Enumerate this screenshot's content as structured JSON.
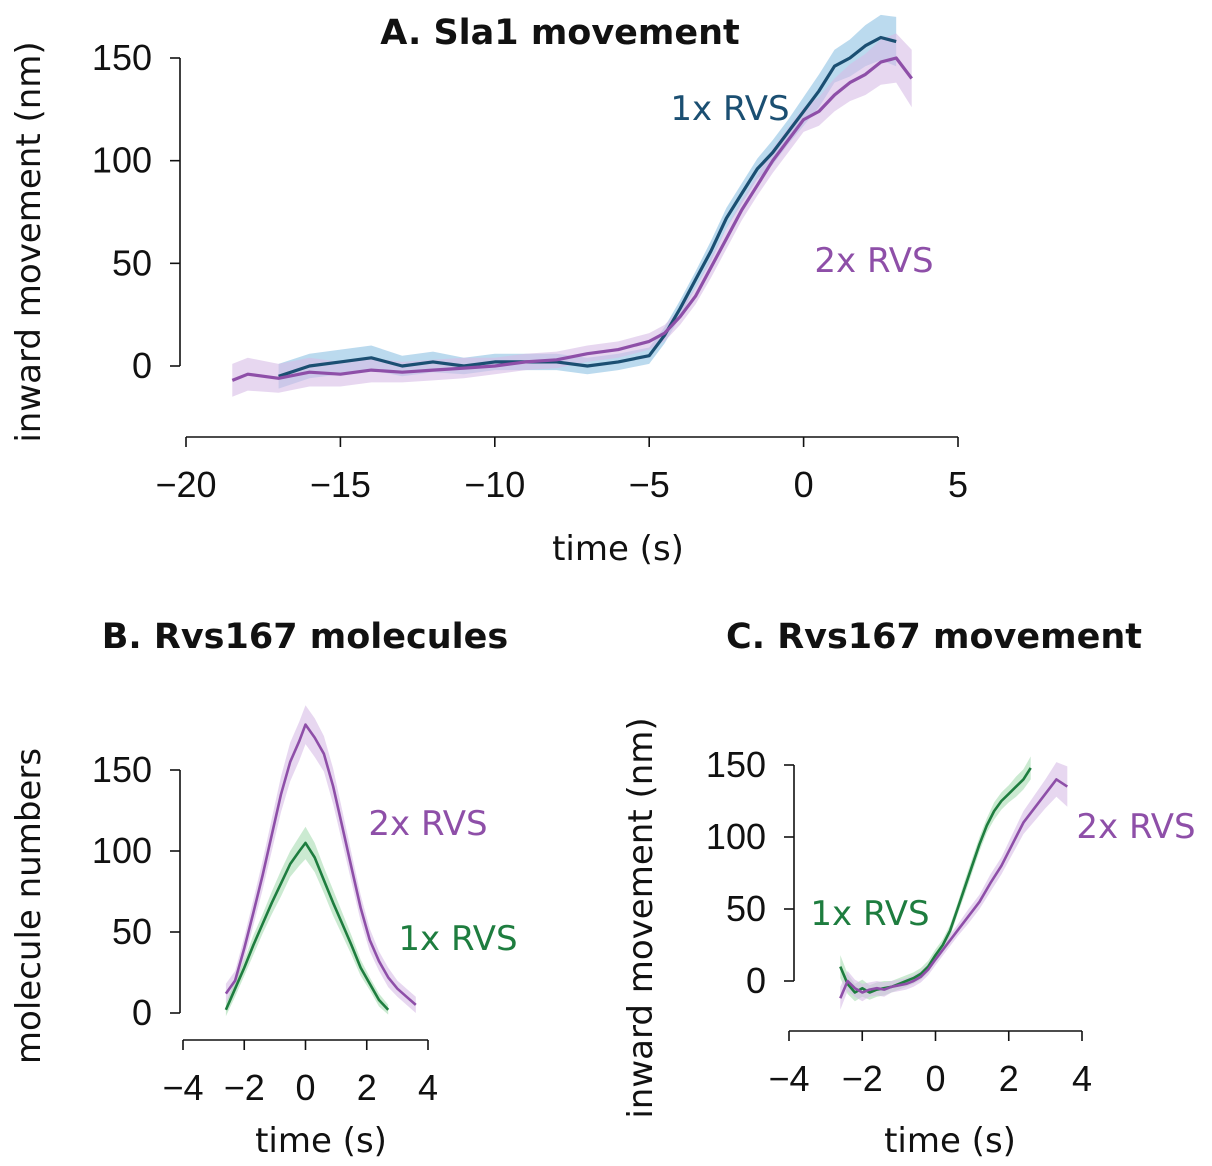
{
  "chart_data": [
    {
      "id": "A",
      "type": "line",
      "title": "A.  Sla1 movement",
      "xlabel": "time (s)",
      "ylabel": "inward movement (nm)",
      "xlim": [
        -20,
        5
      ],
      "ylim": [
        -30,
        165
      ],
      "xticks": [
        -20,
        -15,
        -10,
        -5,
        0,
        5
      ],
      "xtick_labels": [
        "−20",
        "−15",
        "−10",
        "−5",
        "0",
        "5"
      ],
      "yticks": [
        0,
        50,
        100,
        150
      ],
      "ytick_labels": [
        "0",
        "50",
        "100",
        "150"
      ],
      "grid": false,
      "series": [
        {
          "name": "1x RVS",
          "color": "#1b4f72",
          "band_color": "#8ec1e3",
          "x": [
            -17,
            -16,
            -15,
            -14,
            -13,
            -12,
            -11,
            -10,
            -9,
            -8,
            -7,
            -6,
            -5,
            -4.5,
            -4,
            -3.5,
            -3,
            -2.5,
            -2,
            -1.5,
            -1,
            -0.5,
            0,
            0.5,
            1,
            1.5,
            2,
            2.5,
            3
          ],
          "y": [
            -5,
            0,
            2,
            4,
            0,
            2,
            0,
            2,
            2,
            2,
            0,
            2,
            5,
            15,
            28,
            42,
            56,
            72,
            84,
            96,
            104,
            114,
            124,
            134,
            146,
            150,
            156,
            160,
            158
          ],
          "err": [
            6,
            6,
            6,
            6,
            5,
            5,
            4,
            4,
            4,
            4,
            4,
            4,
            4,
            4,
            4,
            4,
            5,
            5,
            5,
            5,
            6,
            6,
            7,
            8,
            8,
            9,
            10,
            11,
            12
          ]
        },
        {
          "name": "2x RVS",
          "color": "#8e4fa8",
          "band_color": "#d7bde6",
          "x": [
            -18.5,
            -18,
            -17,
            -16,
            -15,
            -14,
            -13,
            -12,
            -11,
            -10,
            -9,
            -8,
            -7,
            -6,
            -5,
            -4.5,
            -4,
            -3.5,
            -3,
            -2.5,
            -2,
            -1.5,
            -1,
            -0.5,
            0,
            0.5,
            1,
            1.5,
            2,
            2.5,
            3,
            3.5
          ],
          "y": [
            -7,
            -4,
            -6,
            -3,
            -4,
            -2,
            -3,
            -2,
            -1,
            0,
            2,
            3,
            6,
            8,
            12,
            16,
            24,
            34,
            48,
            62,
            76,
            88,
            100,
            110,
            120,
            124,
            132,
            138,
            142,
            148,
            150,
            140
          ],
          "err": [
            8,
            8,
            7,
            7,
            6,
            6,
            5,
            5,
            5,
            4,
            4,
            4,
            4,
            4,
            4,
            4,
            4,
            4,
            5,
            5,
            5,
            5,
            6,
            6,
            6,
            7,
            8,
            9,
            10,
            11,
            12,
            14
          ]
        }
      ],
      "labels": [
        {
          "text": "1x RVS",
          "series": "1x RVS"
        },
        {
          "text": "2x RVS",
          "series": "2x RVS"
        }
      ]
    },
    {
      "id": "B",
      "type": "line",
      "title": "B.  Rvs167 molecules",
      "xlabel": "time (s)",
      "ylabel": "molecule numbers",
      "xlim": [
        -4,
        4
      ],
      "ylim": [
        -5,
        190
      ],
      "xticks": [
        -4,
        -2,
        0,
        2,
        4
      ],
      "xtick_labels": [
        "−4",
        "−2",
        "0",
        "2",
        "4"
      ],
      "yticks": [
        0,
        50,
        100,
        150
      ],
      "ytick_labels": [
        "0",
        "50",
        "100",
        "150"
      ],
      "grid": false,
      "series": [
        {
          "name": "2x RVS",
          "color": "#8e4fa8",
          "band_color": "#d7bde6",
          "x": [
            -2.6,
            -2.3,
            -2,
            -1.7,
            -1.4,
            -1.1,
            -0.8,
            -0.5,
            -0.2,
            0,
            0.3,
            0.6,
            0.9,
            1.2,
            1.5,
            1.8,
            2.1,
            2.4,
            2.7,
            3,
            3.3,
            3.6
          ],
          "y": [
            12,
            20,
            40,
            62,
            85,
            110,
            135,
            155,
            168,
            178,
            170,
            160,
            140,
            115,
            90,
            65,
            45,
            32,
            22,
            15,
            10,
            5
          ],
          "err": [
            6,
            6,
            7,
            8,
            9,
            10,
            11,
            12,
            12,
            12,
            12,
            11,
            11,
            10,
            9,
            8,
            7,
            6,
            6,
            5,
            5,
            5
          ]
        },
        {
          "name": "1x RVS",
          "color": "#1e7d3f",
          "band_color": "#a8dcb3",
          "x": [
            -2.6,
            -2.3,
            -2,
            -1.7,
            -1.4,
            -1.1,
            -0.8,
            -0.5,
            -0.2,
            0,
            0.3,
            0.6,
            0.9,
            1.2,
            1.5,
            1.8,
            2.1,
            2.4,
            2.7
          ],
          "y": [
            2,
            15,
            28,
            42,
            55,
            68,
            80,
            92,
            100,
            105,
            96,
            82,
            68,
            55,
            42,
            28,
            18,
            8,
            2
          ],
          "err": [
            4,
            5,
            5,
            6,
            6,
            7,
            8,
            8,
            9,
            10,
            9,
            8,
            8,
            7,
            6,
            5,
            4,
            4,
            3
          ]
        }
      ],
      "labels": [
        {
          "text": "2x RVS",
          "series": "2x RVS"
        },
        {
          "text": "1x RVS",
          "series": "1x RVS"
        }
      ]
    },
    {
      "id": "C",
      "type": "line",
      "title": "C.  Rvs167 movement",
      "xlabel": "time (s)",
      "ylabel": "inward movement (nm)",
      "xlim": [
        -4,
        4
      ],
      "ylim": [
        -30,
        165
      ],
      "xticks": [
        -4,
        -2,
        0,
        2,
        4
      ],
      "xtick_labels": [
        "−4",
        "−2",
        "0",
        "2",
        "4"
      ],
      "yticks": [
        0,
        50,
        100,
        150
      ],
      "ytick_labels": [
        "0",
        "50",
        "100",
        "150"
      ],
      "grid": false,
      "series": [
        {
          "name": "1x RVS",
          "color": "#1e7d3f",
          "band_color": "#a8dcb3",
          "x": [
            -2.6,
            -2.4,
            -2.2,
            -2,
            -1.8,
            -1.6,
            -1.4,
            -1.2,
            -1,
            -0.8,
            -0.6,
            -0.4,
            -0.2,
            0,
            0.2,
            0.4,
            0.6,
            0.8,
            1,
            1.2,
            1.4,
            1.6,
            1.8,
            2,
            2.2,
            2.4,
            2.6
          ],
          "y": [
            10,
            -2,
            -8,
            -5,
            -8,
            -6,
            -5,
            -4,
            -2,
            0,
            2,
            5,
            10,
            18,
            25,
            35,
            50,
            65,
            80,
            95,
            108,
            118,
            125,
            130,
            135,
            140,
            148
          ],
          "err": [
            8,
            7,
            6,
            6,
            5,
            5,
            5,
            4,
            4,
            4,
            4,
            4,
            4,
            4,
            4,
            4,
            4,
            5,
            5,
            5,
            5,
            6,
            6,
            6,
            7,
            7,
            8
          ]
        },
        {
          "name": "2x RVS",
          "color": "#8e4fa8",
          "band_color": "#d7bde6",
          "x": [
            -2.6,
            -2.4,
            -2.2,
            -2,
            -1.8,
            -1.6,
            -1.4,
            -1.2,
            -1,
            -0.8,
            -0.6,
            -0.4,
            -0.2,
            0,
            0.3,
            0.6,
            0.9,
            1.2,
            1.5,
            1.8,
            2.1,
            2.4,
            2.7,
            3,
            3.3,
            3.6
          ],
          "y": [
            -12,
            0,
            -5,
            -8,
            -6,
            -5,
            -6,
            -4,
            -3,
            -2,
            0,
            3,
            8,
            15,
            25,
            35,
            45,
            55,
            68,
            80,
            95,
            110,
            120,
            130,
            140,
            135
          ],
          "err": [
            8,
            7,
            6,
            6,
            5,
            5,
            5,
            4,
            4,
            4,
            4,
            4,
            4,
            4,
            4,
            4,
            5,
            5,
            6,
            6,
            7,
            8,
            9,
            10,
            12,
            14
          ]
        }
      ],
      "labels": [
        {
          "text": "1x RVS",
          "series": "1x RVS"
        },
        {
          "text": "2x RVS",
          "series": "2x RVS"
        }
      ]
    }
  ]
}
